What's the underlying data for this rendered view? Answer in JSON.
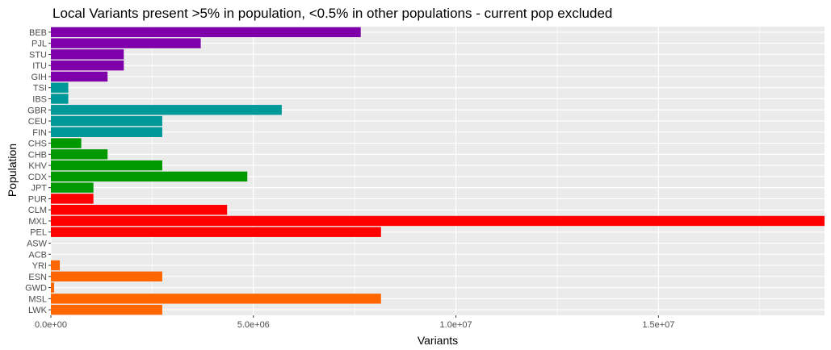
{
  "chart_data": {
    "type": "bar",
    "orientation": "horizontal",
    "title": "Local Variants present >5% in population, <0.5% in other populations - current pop excluded",
    "xlabel": "Variants",
    "ylabel": "Population",
    "xlim": [
      0,
      19100000
    ],
    "x_ticks": [
      0,
      5000000,
      10000000,
      15000000
    ],
    "x_tick_labels": [
      "0.0e+00",
      "5.0e+06",
      "1.0e+07",
      "1.5e+07"
    ],
    "grid": true,
    "legend": "none",
    "categories": [
      "BEB",
      "PJL",
      "STU",
      "ITU",
      "GIH",
      "TSI",
      "IBS",
      "GBR",
      "CEU",
      "FIN",
      "CHS",
      "CHB",
      "KHV",
      "CDX",
      "JPT",
      "PUR",
      "CLM",
      "MXL",
      "PEL",
      "ASW",
      "ACB",
      "YRI",
      "ESN",
      "GWD",
      "MSL",
      "LWK"
    ],
    "values": [
      7650000,
      3700000,
      1800000,
      1800000,
      1400000,
      430000,
      430000,
      5700000,
      2750000,
      2750000,
      750000,
      1400000,
      2750000,
      4850000,
      1050000,
      1050000,
      4350000,
      19100000,
      8150000,
      0,
      0,
      220000,
      2750000,
      80000,
      8150000,
      2750000
    ],
    "bar_colors": [
      "#7F00AA",
      "#7F00AA",
      "#7F00AA",
      "#7F00AA",
      "#7F00AA",
      "#009999",
      "#009999",
      "#009999",
      "#009999",
      "#009999",
      "#009900",
      "#009900",
      "#009900",
      "#009900",
      "#009900",
      "#FF0000",
      "#FF0000",
      "#FF0000",
      "#FF0000",
      "#FF6600",
      "#FF6600",
      "#FF6600",
      "#FF6600",
      "#FF6600",
      "#FF6600",
      "#FF6600"
    ],
    "panel_background": "#EBEBEB",
    "gridline_color": "#FFFFFF"
  }
}
